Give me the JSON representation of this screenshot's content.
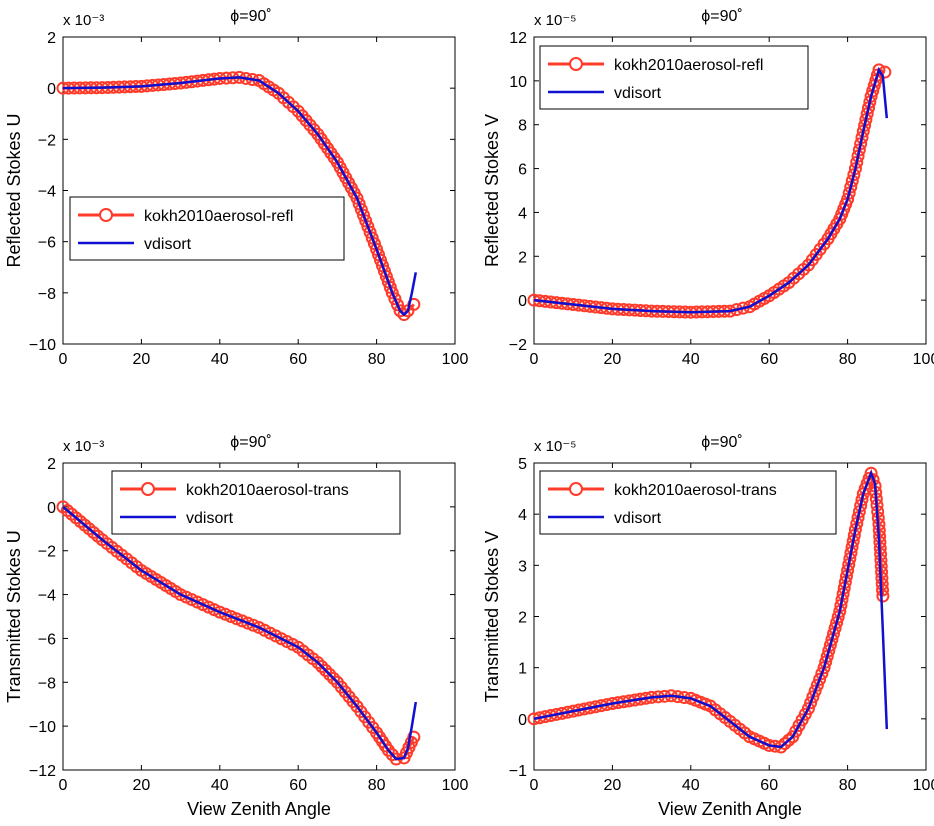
{
  "figure": {
    "colors": {
      "model": "#ff3b2a",
      "vdisort": "#1010d0",
      "axis": "#000000"
    }
  },
  "chart_data": [
    {
      "type": "line",
      "id": "refl-u",
      "title": "ϕ=90˚",
      "exponent_label": "x 10⁻³",
      "xlabel": "",
      "ylabel": "Reflected Stokes U",
      "xlim": [
        0,
        100
      ],
      "ylim": [
        -10,
        2
      ],
      "xticks": [
        "0",
        "20",
        "40",
        "60",
        "80",
        "100"
      ],
      "yticks": [
        "2",
        "0",
        "−2",
        "−4",
        "−6",
        "−8",
        "−10"
      ],
      "legend": {
        "position": "middle-left",
        "entries": [
          "kokh2010aerosol-refl",
          "vdisort"
        ]
      },
      "series": [
        {
          "name": "kokh2010aerosol-refl",
          "style": "markers",
          "x": [
            0,
            10,
            20,
            30,
            40,
            45,
            50,
            55,
            60,
            65,
            70,
            75,
            80,
            84,
            86,
            87,
            88,
            89.5
          ],
          "y": [
            0,
            0.02,
            0.07,
            0.2,
            0.38,
            0.42,
            0.3,
            -0.2,
            -0.9,
            -1.8,
            -2.9,
            -4.3,
            -6.3,
            -8.0,
            -8.7,
            -8.85,
            -8.7,
            -8.45
          ]
        },
        {
          "name": "vdisort",
          "style": "line",
          "x": [
            0,
            10,
            20,
            30,
            40,
            45,
            50,
            55,
            60,
            65,
            70,
            75,
            80,
            84,
            86,
            87,
            88,
            89,
            90
          ],
          "y": [
            0,
            0.02,
            0.07,
            0.2,
            0.38,
            0.42,
            0.3,
            -0.2,
            -0.9,
            -1.8,
            -2.9,
            -4.3,
            -6.3,
            -8.0,
            -8.7,
            -8.85,
            -8.7,
            -8.0,
            -7.2
          ]
        }
      ]
    },
    {
      "type": "line",
      "id": "refl-v",
      "title": "ϕ=90˚",
      "exponent_label": "x 10⁻⁵",
      "xlabel": "",
      "ylabel": "Reflected Stokes V",
      "xlim": [
        0,
        100
      ],
      "ylim": [
        -2,
        12
      ],
      "xticks": [
        "0",
        "20",
        "40",
        "60",
        "80",
        "100"
      ],
      "yticks": [
        "12",
        "10",
        "8",
        "6",
        "4",
        "2",
        "0",
        "−2"
      ],
      "legend": {
        "position": "top-left",
        "entries": [
          "kokh2010aerosol-refl",
          "vdisort"
        ]
      },
      "series": [
        {
          "name": "kokh2010aerosol-refl",
          "style": "markers",
          "x": [
            0,
            10,
            20,
            30,
            40,
            50,
            55,
            60,
            65,
            70,
            75,
            78,
            80,
            82,
            84,
            86,
            88,
            89.5
          ],
          "y": [
            0,
            -0.2,
            -0.4,
            -0.5,
            -0.55,
            -0.5,
            -0.3,
            0.2,
            0.8,
            1.6,
            2.8,
            3.7,
            4.6,
            6.0,
            7.7,
            9.3,
            10.5,
            10.4
          ]
        },
        {
          "name": "vdisort",
          "style": "line",
          "x": [
            0,
            10,
            20,
            30,
            40,
            50,
            55,
            60,
            65,
            70,
            75,
            78,
            80,
            82,
            84,
            86,
            88,
            89,
            90
          ],
          "y": [
            0,
            -0.2,
            -0.4,
            -0.5,
            -0.55,
            -0.5,
            -0.3,
            0.2,
            0.8,
            1.6,
            2.8,
            3.7,
            4.6,
            6.0,
            7.7,
            9.3,
            10.5,
            10.2,
            8.3
          ]
        }
      ]
    },
    {
      "type": "line",
      "id": "trans-u",
      "title": "ϕ=90˚",
      "exponent_label": "x 10⁻³",
      "xlabel": "View Zenith Angle",
      "ylabel": "Transmitted Stokes U",
      "xlim": [
        0,
        100
      ],
      "ylim": [
        -12,
        2
      ],
      "xticks": [
        "0",
        "20",
        "40",
        "60",
        "80",
        "100"
      ],
      "yticks": [
        "2",
        "0",
        "−2",
        "−4",
        "−6",
        "−8",
        "−10",
        "−12"
      ],
      "legend": {
        "position": "top-center",
        "entries": [
          "kokh2010aerosol-trans",
          "vdisort"
        ]
      },
      "series": [
        {
          "name": "kokh2010aerosol-trans",
          "style": "markers",
          "x": [
            0,
            10,
            20,
            30,
            40,
            50,
            60,
            65,
            70,
            75,
            80,
            83,
            85,
            87,
            89.5
          ],
          "y": [
            0,
            -1.5,
            -2.9,
            -4.0,
            -4.8,
            -5.5,
            -6.4,
            -7.1,
            -8.0,
            -9.1,
            -10.3,
            -11.1,
            -11.5,
            -11.45,
            -10.5
          ]
        },
        {
          "name": "vdisort",
          "style": "line",
          "x": [
            0,
            10,
            20,
            30,
            40,
            50,
            60,
            65,
            70,
            75,
            80,
            83,
            85,
            87,
            88,
            89,
            90
          ],
          "y": [
            0,
            -1.5,
            -2.9,
            -4.0,
            -4.8,
            -5.5,
            -6.4,
            -7.1,
            -8.0,
            -9.1,
            -10.3,
            -11.1,
            -11.5,
            -11.45,
            -11.0,
            -10.0,
            -8.9
          ]
        }
      ]
    },
    {
      "type": "line",
      "id": "trans-v",
      "title": "ϕ=90˚",
      "exponent_label": "x 10⁻⁵",
      "xlabel": "View Zenith Angle",
      "ylabel": "Transmitted Stokes V",
      "xlim": [
        0,
        100
      ],
      "ylim": [
        -1,
        5
      ],
      "xticks": [
        "0",
        "20",
        "40",
        "60",
        "80",
        "100"
      ],
      "yticks": [
        "5",
        "4",
        "3",
        "2",
        "1",
        "0",
        "−1"
      ],
      "legend": {
        "position": "top-left",
        "entries": [
          "kokh2010aerosol-trans",
          "vdisort"
        ]
      },
      "series": [
        {
          "name": "kokh2010aerosol-trans",
          "style": "markers",
          "x": [
            0,
            10,
            20,
            30,
            35,
            40,
            45,
            50,
            55,
            60,
            63,
            66,
            70,
            74,
            78,
            80,
            82,
            84,
            86,
            87,
            88,
            89
          ],
          "y": [
            0,
            0.15,
            0.3,
            0.42,
            0.45,
            0.4,
            0.25,
            -0.05,
            -0.35,
            -0.52,
            -0.55,
            -0.35,
            0.2,
            1.0,
            2.1,
            2.9,
            3.7,
            4.4,
            4.8,
            4.55,
            3.8,
            2.4
          ]
        },
        {
          "name": "vdisort",
          "style": "line",
          "x": [
            0,
            10,
            20,
            30,
            35,
            40,
            45,
            50,
            55,
            60,
            63,
            66,
            70,
            74,
            78,
            80,
            82,
            84,
            86,
            87,
            88,
            89,
            90
          ],
          "y": [
            0,
            0.15,
            0.3,
            0.42,
            0.45,
            0.4,
            0.25,
            -0.05,
            -0.35,
            -0.52,
            -0.55,
            -0.35,
            0.2,
            1.0,
            2.1,
            2.9,
            3.7,
            4.4,
            4.8,
            4.6,
            3.5,
            1.7,
            -0.2
          ]
        }
      ]
    }
  ]
}
